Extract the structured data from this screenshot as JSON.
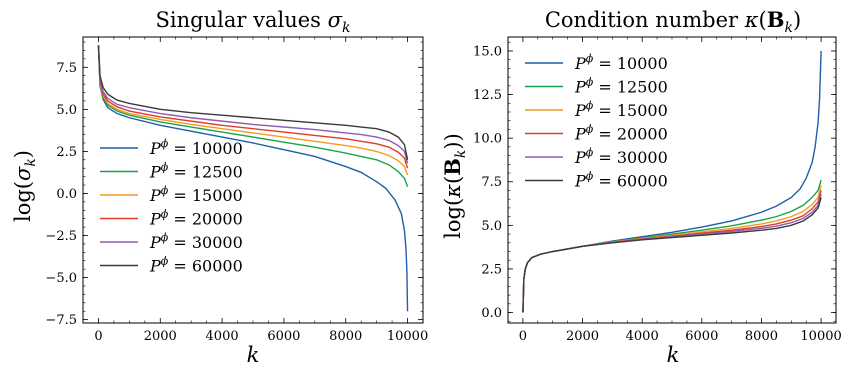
{
  "chart_data": [
    {
      "type": "line",
      "title": "Singular values σ_k",
      "xlabel": "k",
      "ylabel": "log(σ_k)",
      "xlim": [
        -500,
        10500
      ],
      "ylim": [
        -7.7,
        9.3
      ],
      "xticks": [
        0,
        2000,
        4000,
        6000,
        8000,
        10000
      ],
      "xtick_labels": [
        "0",
        "2000",
        "4000",
        "6000",
        "8000",
        "10000"
      ],
      "yticks": [
        -7.5,
        -5.0,
        -2.5,
        0.0,
        2.5,
        5.0,
        7.5
      ],
      "ytick_labels": [
        "−7.5",
        "−5.0",
        "−2.5",
        "0.0",
        "2.5",
        "5.0",
        "7.5"
      ],
      "legend_position": "lower-left",
      "series": [
        {
          "name": "P^ϕ = 10000",
          "color": "#1f5fa8",
          "x": [
            1,
            50,
            150,
            300,
            600,
            1000,
            2000,
            3000,
            4000,
            5000,
            6000,
            7000,
            8000,
            8500,
            9000,
            9300,
            9600,
            9800,
            9900,
            9950,
            9980,
            10000
          ],
          "y": [
            8.8,
            6.4,
            5.6,
            5.1,
            4.75,
            4.5,
            4.05,
            3.7,
            3.35,
            3.0,
            2.6,
            2.2,
            1.6,
            1.25,
            0.7,
            0.3,
            -0.4,
            -1.2,
            -2.2,
            -3.3,
            -4.7,
            -7.0
          ]
        },
        {
          "name": "P^ϕ = 12500",
          "color": "#1aa34a",
          "x": [
            1,
            50,
            150,
            300,
            600,
            1000,
            2000,
            3000,
            4000,
            5000,
            6000,
            7000,
            8000,
            8500,
            9000,
            9400,
            9700,
            9900,
            10000
          ],
          "y": [
            8.8,
            6.5,
            5.7,
            5.25,
            4.9,
            4.65,
            4.25,
            3.95,
            3.65,
            3.35,
            3.05,
            2.75,
            2.4,
            2.2,
            2.0,
            1.7,
            1.3,
            0.9,
            0.4
          ]
        },
        {
          "name": "P^ϕ = 15000",
          "color": "#f39c1f",
          "x": [
            1,
            50,
            150,
            300,
            600,
            1000,
            2000,
            3000,
            4000,
            5000,
            6000,
            7000,
            8000,
            8500,
            9000,
            9400,
            9700,
            9900,
            10000
          ],
          "y": [
            8.8,
            6.6,
            5.8,
            5.35,
            5.0,
            4.75,
            4.4,
            4.1,
            3.85,
            3.6,
            3.35,
            3.1,
            2.85,
            2.7,
            2.5,
            2.25,
            1.95,
            1.6,
            1.1
          ]
        },
        {
          "name": "P^ϕ = 20000",
          "color": "#e03c28",
          "x": [
            1,
            50,
            150,
            300,
            600,
            1000,
            2000,
            3000,
            4000,
            5000,
            6000,
            7000,
            8000,
            8500,
            9000,
            9400,
            9700,
            9900,
            10000
          ],
          "y": [
            8.8,
            6.7,
            5.9,
            5.5,
            5.15,
            4.9,
            4.55,
            4.3,
            4.05,
            3.85,
            3.65,
            3.45,
            3.25,
            3.1,
            2.95,
            2.75,
            2.45,
            2.1,
            1.5
          ]
        },
        {
          "name": "P^ϕ = 30000",
          "color": "#8e5bb5",
          "x": [
            1,
            50,
            150,
            300,
            600,
            1000,
            2000,
            3000,
            4000,
            5000,
            6000,
            7000,
            8000,
            8500,
            9000,
            9400,
            9700,
            9900,
            10000
          ],
          "y": [
            8.8,
            6.8,
            6.05,
            5.65,
            5.3,
            5.1,
            4.75,
            4.5,
            4.3,
            4.1,
            3.95,
            3.8,
            3.6,
            3.5,
            3.35,
            3.15,
            2.85,
            2.5,
            1.8
          ]
        },
        {
          "name": "P^ϕ = 60000",
          "color": "#3a3a3a",
          "x": [
            1,
            50,
            150,
            300,
            600,
            1000,
            2000,
            3000,
            4000,
            5000,
            6000,
            7000,
            8000,
            8500,
            9000,
            9400,
            9700,
            9900,
            10000
          ],
          "y": [
            8.8,
            7.0,
            6.3,
            5.9,
            5.55,
            5.35,
            5.0,
            4.8,
            4.65,
            4.5,
            4.35,
            4.2,
            4.05,
            3.95,
            3.85,
            3.65,
            3.35,
            2.9,
            2.0
          ]
        }
      ]
    },
    {
      "type": "line",
      "title": "Condition number κ(B_k)",
      "xlabel": "k",
      "ylabel": "log(κ(B_k))",
      "xlim": [
        -500,
        10500
      ],
      "ylim": [
        -0.6,
        15.8
      ],
      "xticks": [
        0,
        2000,
        4000,
        6000,
        8000,
        10000
      ],
      "xtick_labels": [
        "0",
        "2000",
        "4000",
        "6000",
        "8000",
        "10000"
      ],
      "yticks": [
        0.0,
        2.5,
        5.0,
        7.5,
        10.0,
        12.5,
        15.0
      ],
      "ytick_labels": [
        "0.0",
        "2.5",
        "5.0",
        "7.5",
        "10.0",
        "12.5",
        "15.0"
      ],
      "legend_position": "upper-left",
      "series": [
        {
          "name": "P^ϕ = 10000",
          "color": "#1f5fa8",
          "x": [
            1,
            30,
            80,
            150,
            300,
            600,
            1000,
            2000,
            3000,
            4000,
            5000,
            6000,
            7000,
            8000,
            8500,
            9000,
            9300,
            9500,
            9700,
            9800,
            9900,
            9950,
            10000
          ],
          "y": [
            0.0,
            1.9,
            2.5,
            2.85,
            3.15,
            3.35,
            3.5,
            3.8,
            4.1,
            4.35,
            4.6,
            4.9,
            5.25,
            5.75,
            6.1,
            6.6,
            7.1,
            7.7,
            8.6,
            9.5,
            10.9,
            12.3,
            15.0
          ]
        },
        {
          "name": "P^ϕ = 12500",
          "color": "#1aa34a",
          "x": [
            1,
            30,
            80,
            150,
            300,
            600,
            1000,
            2000,
            3000,
            4000,
            5000,
            6000,
            7000,
            8000,
            8500,
            9000,
            9400,
            9700,
            9900,
            10000
          ],
          "y": [
            0.0,
            1.9,
            2.5,
            2.85,
            3.15,
            3.35,
            3.5,
            3.8,
            4.07,
            4.28,
            4.5,
            4.72,
            4.97,
            5.3,
            5.5,
            5.8,
            6.15,
            6.6,
            7.0,
            7.6
          ]
        },
        {
          "name": "P^ϕ = 15000",
          "color": "#f39c1f",
          "x": [
            1,
            30,
            80,
            150,
            300,
            600,
            1000,
            2000,
            3000,
            4000,
            5000,
            6000,
            7000,
            8000,
            8500,
            9000,
            9400,
            9700,
            9900,
            10000
          ],
          "y": [
            0.0,
            1.9,
            2.5,
            2.85,
            3.15,
            3.35,
            3.5,
            3.8,
            4.05,
            4.25,
            4.43,
            4.62,
            4.82,
            5.08,
            5.25,
            5.5,
            5.8,
            6.2,
            6.6,
            7.3
          ]
        },
        {
          "name": "P^ϕ = 20000",
          "color": "#e03c28",
          "x": [
            1,
            30,
            80,
            150,
            300,
            600,
            1000,
            2000,
            3000,
            4000,
            5000,
            6000,
            7000,
            8000,
            8500,
            9000,
            9400,
            9700,
            9900,
            10000
          ],
          "y": [
            0.0,
            1.9,
            2.5,
            2.85,
            3.15,
            3.35,
            3.5,
            3.8,
            4.03,
            4.22,
            4.38,
            4.55,
            4.72,
            4.93,
            5.08,
            5.3,
            5.55,
            5.95,
            6.35,
            7.0
          ]
        },
        {
          "name": "P^ϕ = 30000",
          "color": "#8e5bb5",
          "x": [
            1,
            30,
            80,
            150,
            300,
            600,
            1000,
            2000,
            3000,
            4000,
            5000,
            6000,
            7000,
            8000,
            8500,
            9000,
            9400,
            9700,
            9900,
            10000
          ],
          "y": [
            0.0,
            1.9,
            2.5,
            2.85,
            3.15,
            3.35,
            3.5,
            3.8,
            4.02,
            4.2,
            4.35,
            4.5,
            4.65,
            4.83,
            4.95,
            5.15,
            5.4,
            5.75,
            6.15,
            6.8
          ]
        },
        {
          "name": "P^ϕ = 60000",
          "color": "#3a3a3a",
          "x": [
            1,
            30,
            80,
            150,
            300,
            600,
            1000,
            2000,
            3000,
            4000,
            5000,
            6000,
            7000,
            8000,
            8500,
            9000,
            9400,
            9700,
            9900,
            10000
          ],
          "y": [
            0.0,
            1.9,
            2.5,
            2.85,
            3.15,
            3.35,
            3.5,
            3.8,
            4.0,
            4.17,
            4.3,
            4.43,
            4.56,
            4.72,
            4.82,
            5.0,
            5.25,
            5.6,
            6.0,
            6.6
          ]
        }
      ]
    }
  ]
}
